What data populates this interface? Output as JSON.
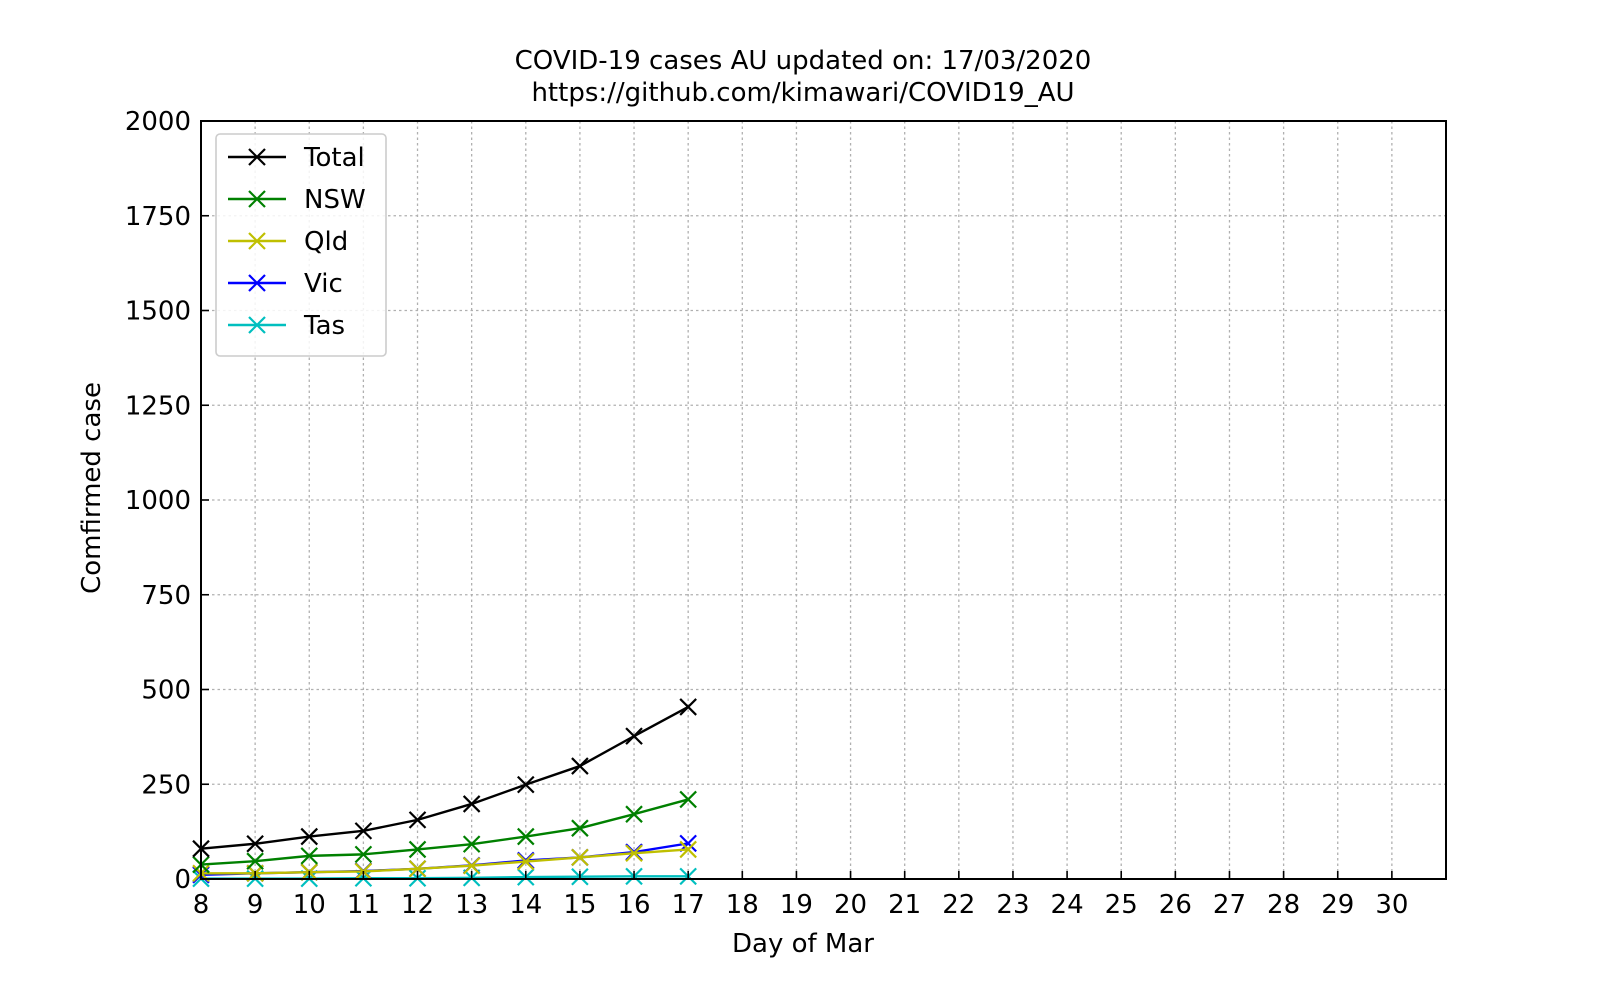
{
  "chart_data": {
    "type": "line",
    "title_line1": "COVID-19 cases AU updated on: 17/03/2020",
    "title_line2": "https://github.com/kimawari/COVID19_AU",
    "xlabel": "Day of Mar",
    "ylabel": "Comfirmed case",
    "xlim": [
      8,
      31
    ],
    "ylim": [
      0,
      2000
    ],
    "xticks": [
      8,
      9,
      10,
      11,
      12,
      13,
      14,
      15,
      16,
      17,
      18,
      19,
      20,
      21,
      22,
      23,
      24,
      25,
      26,
      27,
      28,
      29,
      30
    ],
    "yticks": [
      0,
      250,
      500,
      750,
      1000,
      1250,
      1500,
      1750,
      2000
    ],
    "grid": true,
    "legend_position": "top-left",
    "marker": "x",
    "x": [
      8,
      9,
      10,
      11,
      12,
      13,
      14,
      15,
      16,
      17
    ],
    "series": [
      {
        "name": "Total",
        "color": "#000000",
        "values": [
          80,
          93,
          112,
          127,
          156,
          198,
          249,
          298,
          377,
          454
        ]
      },
      {
        "name": "NSW",
        "color": "#008000",
        "values": [
          38,
          47,
          61,
          65,
          78,
          92,
          112,
          134,
          171,
          210
        ]
      },
      {
        "name": "Qld",
        "color": "#bfbf00",
        "values": [
          15,
          15,
          18,
          20,
          27,
          35,
          46,
          57,
          68,
          78
        ]
      },
      {
        "name": "Vic",
        "color": "#0000ff",
        "values": [
          11,
          15,
          18,
          21,
          27,
          36,
          49,
          57,
          71,
          94
        ]
      },
      {
        "name": "Tas",
        "color": "#00bfbf",
        "values": [
          1,
          1,
          1,
          2,
          2,
          3,
          5,
          6,
          7,
          7
        ]
      }
    ]
  }
}
